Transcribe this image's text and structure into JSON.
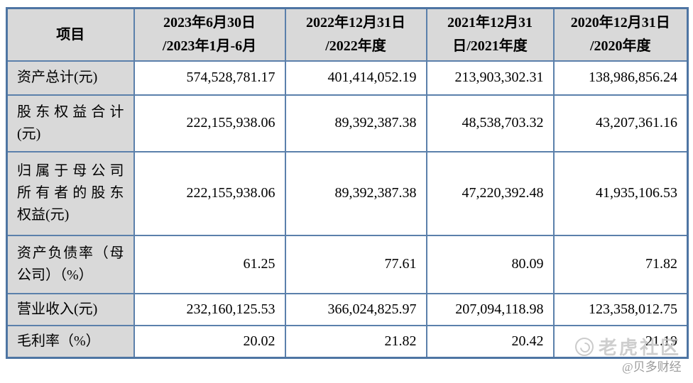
{
  "table": {
    "columns": [
      {
        "lines": [
          "项目"
        ]
      },
      {
        "lines": [
          "2023年6月30日",
          "/2023年1月-6月"
        ]
      },
      {
        "lines": [
          "2022年12月31日",
          "/2022年度"
        ]
      },
      {
        "lines": [
          "2021年12月31",
          "日/2021年度"
        ]
      },
      {
        "lines": [
          "2020年12月31日",
          "/2020年度"
        ]
      }
    ],
    "rows": [
      {
        "label_lines": [
          "资产总计(元)"
        ],
        "values": [
          "574,528,781.17",
          "401,414,052.19",
          "213,903,302.31",
          "138,986,856.24"
        ]
      },
      {
        "label_lines": [
          "股东权益合计",
          "(元)"
        ],
        "values": [
          "222,155,938.06",
          "89,392,387.38",
          "48,538,703.32",
          "43,207,361.16"
        ]
      },
      {
        "label_lines": [
          "归属于母公司",
          "所有者的股东",
          "权益(元)"
        ],
        "values": [
          "222,155,938.06",
          "89,392,387.38",
          "47,220,392.48",
          "41,935,106.53"
        ]
      },
      {
        "label_lines": [
          "资产负债率（母",
          "公司）（%）"
        ],
        "values": [
          "61.25",
          "77.61",
          "80.09",
          "71.82"
        ]
      },
      {
        "label_lines": [
          "营业收入(元)"
        ],
        "values": [
          "232,160,125.53",
          "366,024,825.97",
          "207,094,118.98",
          "123,358,012.75"
        ]
      },
      {
        "label_lines": [
          "毛利率（%）"
        ],
        "values": [
          "20.02",
          "21.82",
          "20.42",
          "21.19"
        ]
      }
    ]
  },
  "watermark": {
    "community": "老虎社区",
    "author": "@贝多财经",
    "logo_icon": "tiger-community-logo"
  },
  "colors": {
    "border_outer": "#4e75a3",
    "border_inner": "#5b80ab",
    "header_bg": "#d9d9d9",
    "label_bg": "#d9d9d9",
    "text": "#000000",
    "watermark_text": "#c6c6c6",
    "watermark_author": "#909090"
  }
}
